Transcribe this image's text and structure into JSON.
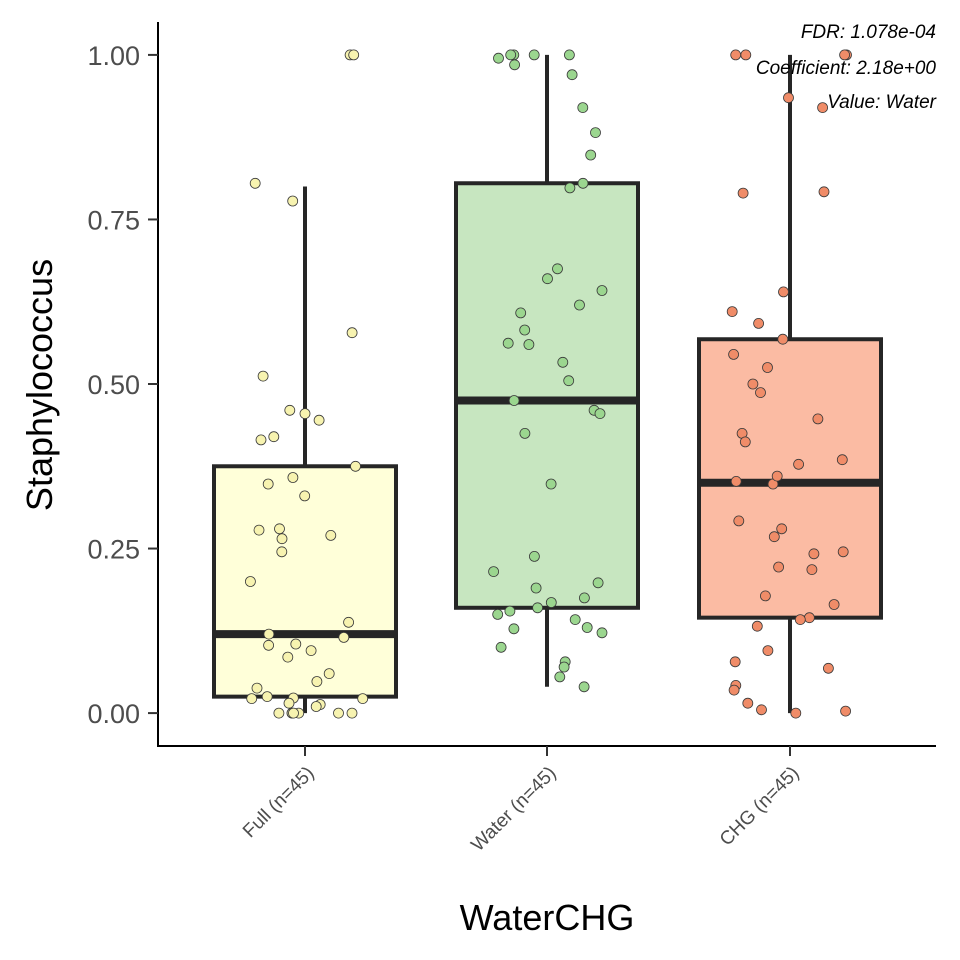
{
  "chart_data": {
    "type": "box",
    "xlabel": "WaterCHG",
    "ylabel": "Staphylococcus",
    "ylim": [
      -0.05,
      1.05
    ],
    "yticks": [
      0.0,
      0.25,
      0.5,
      0.75,
      1.0
    ],
    "ytick_labels": [
      "0.00",
      "0.25",
      "0.50",
      "0.75",
      "1.00"
    ],
    "grid": false,
    "annotation": [
      "FDR: 1.078e-04",
      "Coefficient: 2.18e+00",
      "Value: Water"
    ],
    "groups": [
      {
        "label": "Full (n=45)",
        "color": "#ffffd9",
        "point_color": "#f7f3b0",
        "q1": 0.025,
        "median": 0.12,
        "q3": 0.375,
        "whisker_low": 0.0,
        "whisker_high": 0.8,
        "points": [
          1.0,
          1.0,
          0.805,
          0.778,
          0.578,
          0.512,
          0.46,
          0.455,
          0.445,
          0.42,
          0.415,
          0.375,
          0.358,
          0.348,
          0.33,
          0.28,
          0.278,
          0.27,
          0.265,
          0.245,
          0.2,
          0.138,
          0.12,
          0.115,
          0.105,
          0.103,
          0.095,
          0.085,
          0.06,
          0.048,
          0.038,
          0.025,
          0.023,
          0.022,
          0.022,
          0.015,
          0.013,
          0.01,
          0.0,
          0.0,
          0.0,
          0.0,
          0.0,
          0.0,
          0.0
        ]
      },
      {
        "label": "Water (n=45)",
        "color": "#c7e6c0",
        "point_color": "#9bd68f",
        "q1": 0.16,
        "median": 0.475,
        "q3": 0.805,
        "whisker_low": 0.04,
        "whisker_high": 1.0,
        "points": [
          1.0,
          1.0,
          1.0,
          1.0,
          0.995,
          0.985,
          0.97,
          0.92,
          0.882,
          0.848,
          0.805,
          0.798,
          0.675,
          0.66,
          0.642,
          0.608,
          0.582,
          0.562,
          0.56,
          0.533,
          0.505,
          0.475,
          0.46,
          0.455,
          0.425,
          0.348,
          0.238,
          0.215,
          0.198,
          0.19,
          0.175,
          0.168,
          0.16,
          0.15,
          0.142,
          0.13,
          0.128,
          0.122,
          0.1,
          0.078,
          0.07,
          0.055,
          0.04,
          0.155,
          0.62
        ]
      },
      {
        "label": "CHG (n=45)",
        "color": "#fbbba3",
        "point_color": "#f08c68",
        "q1": 0.145,
        "median": 0.35,
        "q3": 0.568,
        "whisker_low": 0.0,
        "whisker_high": 1.0,
        "points": [
          1.0,
          1.0,
          1.0,
          1.0,
          0.935,
          0.92,
          0.792,
          0.79,
          0.64,
          0.61,
          0.592,
          0.568,
          0.545,
          0.525,
          0.5,
          0.487,
          0.447,
          0.425,
          0.412,
          0.385,
          0.378,
          0.352,
          0.348,
          0.292,
          0.28,
          0.268,
          0.245,
          0.242,
          0.222,
          0.218,
          0.178,
          0.165,
          0.145,
          0.142,
          0.132,
          0.095,
          0.078,
          0.068,
          0.042,
          0.035,
          0.015,
          0.005,
          0.003,
          0.0,
          0.36
        ]
      }
    ]
  }
}
